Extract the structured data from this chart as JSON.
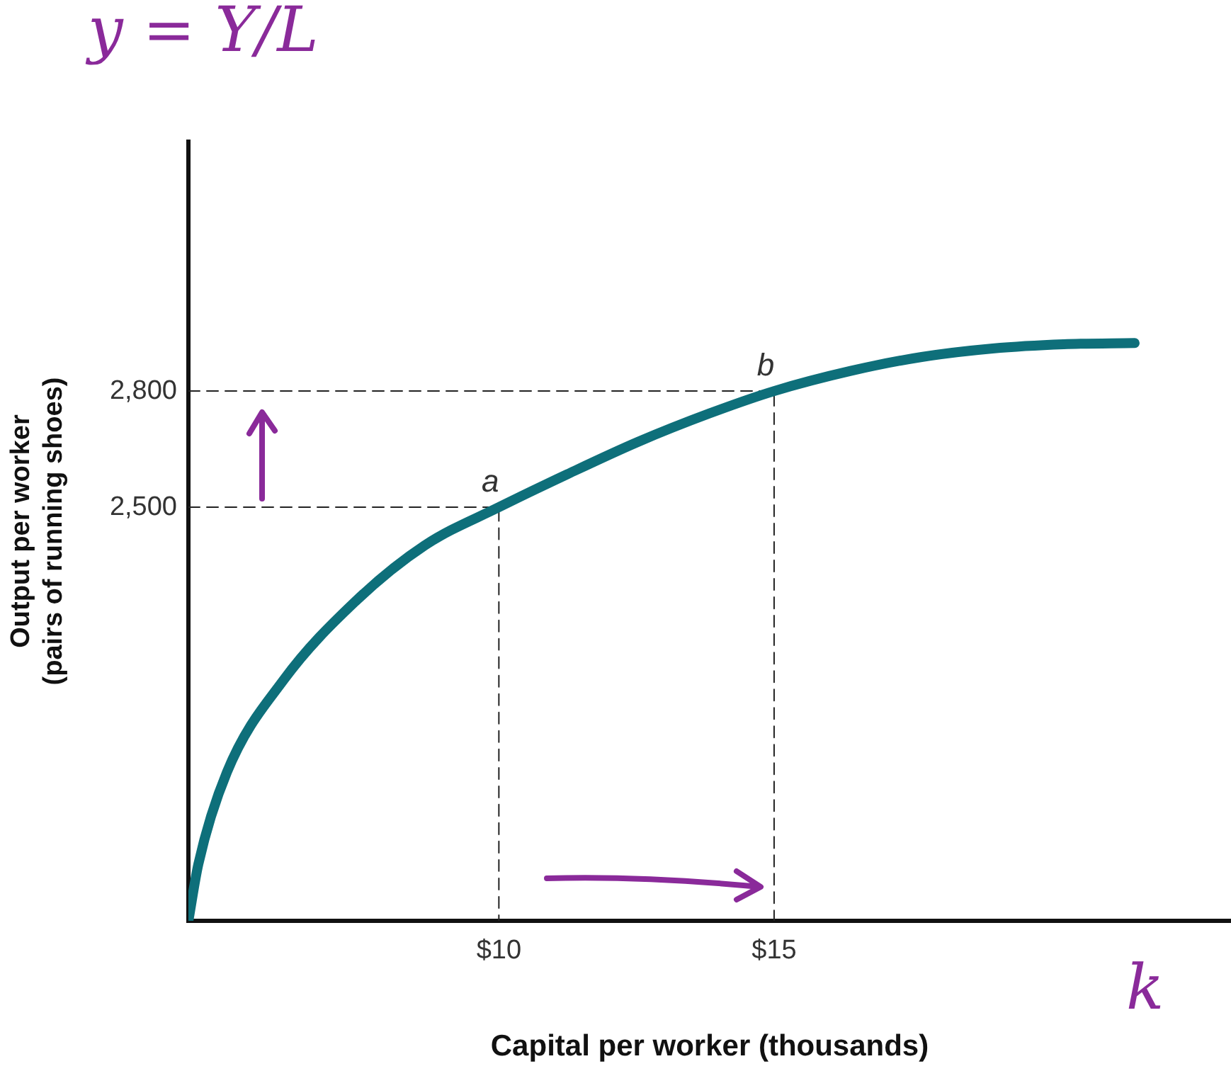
{
  "chart_data": {
    "type": "line",
    "xlabel": "Capital per worker (thousands)",
    "ylabel": "Output per worker\n(pairs of running shoes)",
    "series": [
      {
        "color": "#0e6f7a",
        "x": [
          4.36,
          4.54,
          5.06,
          6.09,
          7.38,
          8.66,
          10,
          11.24,
          12.53,
          13.82,
          15,
          16.39,
          17.68,
          18.97,
          20.26,
          21.55
        ],
        "values": [
          1432,
          1578,
          1816,
          2054,
          2255,
          2402,
          2500,
          2585,
          2669,
          2742,
          2800,
          2852,
          2888,
          2910,
          2921,
          2924
        ]
      },
      {
        "type": "line",
        "color": "#222222",
        "line_style": "dashed",
        "x": [
          4.36,
          10,
          10
        ],
        "values": [
          2500,
          2500,
          1432
        ]
      },
      {
        "type": "line",
        "color": "#222222",
        "line_style": "dashed",
        "x": [
          4.36,
          15,
          15
        ],
        "values": [
          2800,
          2800,
          1432
        ]
      }
    ],
    "xlim": [
      4.36,
      23.3
    ],
    "ylim": [
      1432,
      3444
    ],
    "xticks": [
      {
        "value": 10,
        "label": "$10"
      },
      {
        "value": 15,
        "label": "$15"
      }
    ],
    "yticks": [
      {
        "value": 2500,
        "label": "2,500"
      },
      {
        "value": 2800,
        "label": "2,800"
      }
    ],
    "annotations": [
      {
        "text": "a",
        "x": 10,
        "y": 2500
      },
      {
        "text": "b",
        "x": 15,
        "y": 2800
      },
      "y = Y/L",
      "k"
    ],
    "grid": false,
    "legend": false,
    "marker": "none",
    "line_style": "solid"
  }
}
